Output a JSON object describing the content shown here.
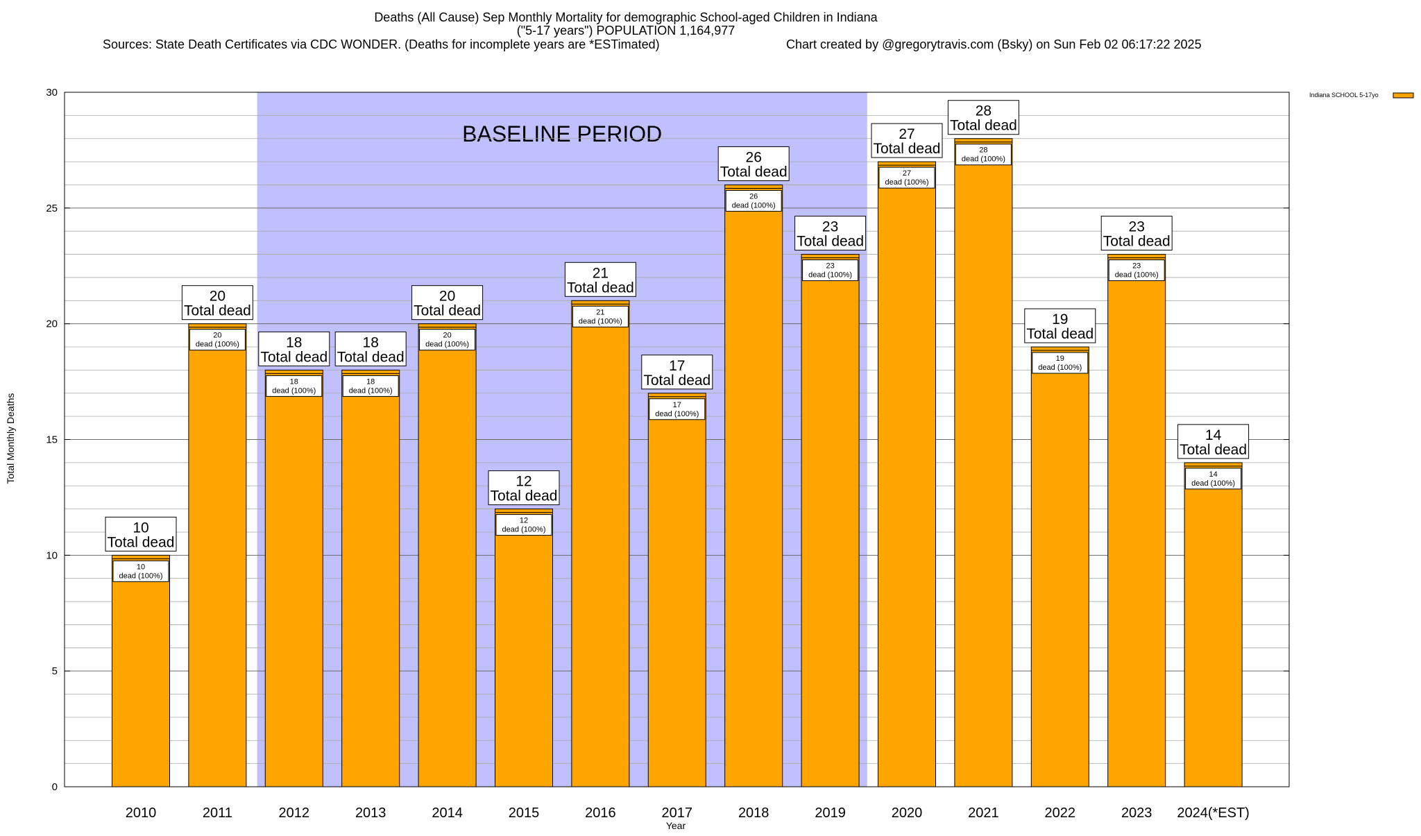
{
  "chart_data": {
    "type": "bar",
    "title": "Deaths (All Cause) Sep Monthly Mortality for demographic School-aged Children in Indiana",
    "subtitle": "(\"5-17 years\") POPULATION 1,164,977",
    "sources": "Sources: State Death Certificates via CDC WONDER. (Deaths for incomplete years are *ESTimated)",
    "credit": "Chart created by @gregorytravis.com (Bsky) on Sun Feb 02 06:17:22 2025",
    "xlabel": "Year",
    "ylabel": "Total Monthly Deaths",
    "ylim": [
      0,
      30
    ],
    "yticks": [
      "0",
      "5",
      "10",
      "15",
      "20",
      "25",
      "30"
    ],
    "grid": true,
    "legend_position": "top-right",
    "categories": [
      "2010",
      "2011",
      "2012",
      "2013",
      "2014",
      "2015",
      "2016",
      "2017",
      "2018",
      "2019",
      "2020",
      "2021",
      "2022",
      "2023",
      "2024(*EST)"
    ],
    "series": [
      {
        "name": "Indiana SCHOOL 5-17yo",
        "color": "#ffa500",
        "values": [
          10,
          20,
          18,
          18,
          20,
          12,
          21,
          17,
          26,
          23,
          27,
          28,
          19,
          23,
          14
        ]
      }
    ],
    "total_labels": [
      "10",
      "20",
      "18",
      "18",
      "20",
      "12",
      "21",
      "17",
      "26",
      "23",
      "27",
      "28",
      "19",
      "23",
      "14"
    ],
    "total_label_suffix": "Total dead",
    "inner_labels": [
      "10",
      "20",
      "18",
      "18",
      "20",
      "12",
      "21",
      "17",
      "26",
      "23",
      "27",
      "28",
      "19",
      "23",
      "14"
    ],
    "inner_label_suffix": "dead (100%)",
    "baseline": {
      "label": "BASELINE PERIOD",
      "start_category": "2012",
      "end_category": "2019",
      "color": "#c0c0ff"
    }
  }
}
